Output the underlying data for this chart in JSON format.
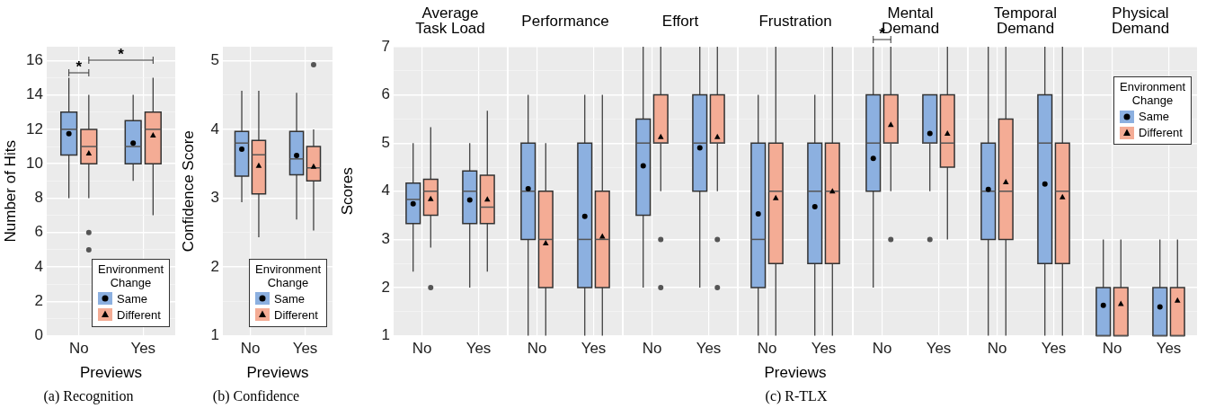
{
  "chart_data": [
    {
      "type": "box",
      "categories": [
        "No",
        "Yes"
      ],
      "xlabel": "Previews",
      "ylabel": "Number of Hits",
      "ylim": [
        0,
        16.8
      ],
      "yticks": [
        0,
        {
          "value": 1,
          "label": null
        },
        2,
        {
          "value": 3,
          "label": null
        },
        4,
        {
          "value": 5,
          "label": null
        },
        6,
        {
          "value": 7,
          "label": null
        },
        8,
        {
          "value": 9,
          "label": null
        },
        10,
        {
          "value": 11,
          "label": null
        },
        12,
        {
          "value": 13,
          "label": null
        },
        14,
        {
          "value": 15,
          "label": null
        },
        16
      ],
      "grid": true,
      "legend": "bottom right",
      "legend_title": "Environment Change",
      "series": [
        {
          "name": "Same",
          "color": "#8cb0e0",
          "marker": "circle",
          "boxes": [
            {
              "low": 8,
              "q1": 10.5,
              "median": 12,
              "q3": 13,
              "high": 15,
              "mean": 11.75
            },
            {
              "low": 9,
              "q1": 10,
              "median": 11,
              "q3": 12.5,
              "high": 14,
              "mean": 11.2
            }
          ]
        },
        {
          "name": "Different",
          "color": "#f4ac95",
          "marker": "triangle",
          "boxes": [
            {
              "low": 8,
              "q1": 10,
              "median": 11,
              "q3": 12,
              "high": 14,
              "mean": 10.6,
              "outliers": [
                6,
                5
              ]
            },
            {
              "low": 7,
              "q1": 10,
              "median": 12,
              "q3": 13,
              "high": 15,
              "mean": 11.65
            }
          ]
        }
      ],
      "annotations": [
        "(a) Recognition",
        "*",
        "*"
      ]
    },
    {
      "type": "box",
      "categories": [
        "No",
        "Yes"
      ],
      "xlabel": "Previews",
      "ylabel": "Confidence Score",
      "ylim": [
        1,
        5.2
      ],
      "yticks": [
        1,
        {
          "value": 1.5,
          "label": null
        },
        2,
        {
          "value": 2.5,
          "label": null
        },
        3,
        {
          "value": 3.5,
          "label": null
        },
        4,
        {
          "value": 4.5,
          "label": null
        },
        5
      ],
      "grid": true,
      "legend": "bottom right",
      "legend_title": "Environment Change",
      "series": [
        {
          "name": "Same",
          "color": "#8cb0e0",
          "marker": "circle",
          "boxes": [
            {
              "low": 2.94,
              "q1": 3.32,
              "median": 3.8,
              "q3": 3.97,
              "high": 4.56,
              "mean": 3.71
            },
            {
              "low": 2.69,
              "q1": 3.34,
              "median": 3.57,
              "q3": 3.97,
              "high": 4.53,
              "mean": 3.62
            }
          ]
        },
        {
          "name": "Different",
          "color": "#f4ac95",
          "marker": "triangle",
          "boxes": [
            {
              "low": 2.43,
              "q1": 3.06,
              "median": 3.63,
              "q3": 3.84,
              "high": 4.56,
              "mean": 3.47
            },
            {
              "low": 2.53,
              "q1": 3.25,
              "median": 3.44,
              "q3": 3.75,
              "high": 4.0,
              "mean": 3.46,
              "outliers": [
                4.94
              ]
            }
          ]
        }
      ],
      "annotations": [
        "(b) Confidence"
      ]
    },
    {
      "type": "box",
      "title": "Average Task Load",
      "categories": [
        "No",
        "Yes"
      ],
      "ylabel": "Scores",
      "ylim": [
        1,
        7
      ],
      "yticks": [
        1,
        {
          "value": 1.5,
          "label": null
        },
        2,
        {
          "value": 2.5,
          "label": null
        },
        3,
        {
          "value": 3.5,
          "label": null
        },
        4,
        {
          "value": 4.5,
          "label": null
        },
        5,
        {
          "value": 5.5,
          "label": null
        },
        6,
        {
          "value": 6.5,
          "label": null
        },
        7
      ],
      "grid": true,
      "series": [
        {
          "color": "#8cb0e0",
          "marker": "circle",
          "boxes": [
            {
              "low": 2.33,
              "q1": 3.33,
              "median": 3.83,
              "q3": 4.17,
              "high": 5,
              "mean": 3.74
            },
            {
              "low": 2,
              "q1": 3.33,
              "median": 4,
              "q3": 4.42,
              "high": 5,
              "mean": 3.82
            }
          ]
        },
        {
          "color": "#f4ac95",
          "marker": "triangle",
          "boxes": [
            {
              "low": 2.83,
              "q1": 3.5,
              "median": 4,
              "q3": 4.25,
              "high": 5.33,
              "mean": 3.84,
              "outliers": [
                2
              ]
            },
            {
              "low": 2.33,
              "q1": 3.33,
              "median": 3.67,
              "q3": 4.33,
              "high": 5.67,
              "mean": 3.83
            }
          ]
        }
      ]
    },
    {
      "type": "box",
      "title": "Performance",
      "categories": [
        "No",
        "Yes"
      ],
      "ylim": [
        1,
        7
      ],
      "yticks": [
        1,
        {
          "value": 1.5,
          "label": null
        },
        2,
        {
          "value": 2.5,
          "label": null
        },
        3,
        {
          "value": 3.5,
          "label": null
        },
        4,
        {
          "value": 4.5,
          "label": null
        },
        5,
        {
          "value": 5.5,
          "label": null
        },
        6,
        {
          "value": 6.5,
          "label": null
        },
        7
      ],
      "grid": true,
      "tick_labels": "x",
      "series": [
        {
          "color": "#8cb0e0",
          "marker": "circle",
          "boxes": [
            {
              "low": 1,
              "q1": 3,
              "median": 4,
              "q3": 5,
              "high": 6,
              "mean": 4.05
            },
            {
              "low": 1,
              "q1": 2,
              "median": 3,
              "q3": 5,
              "high": 6,
              "mean": 3.48
            }
          ]
        },
        {
          "color": "#f4ac95",
          "marker": "triangle",
          "boxes": [
            {
              "low": 1,
              "q1": 2,
              "median": 3,
              "q3": 4,
              "high": 5,
              "mean": 2.92
            },
            {
              "low": 1,
              "q1": 2,
              "median": 3,
              "q3": 4,
              "high": 6,
              "mean": 3.06
            }
          ]
        }
      ]
    },
    {
      "type": "box",
      "title": "Effort",
      "categories": [
        "No",
        "Yes"
      ],
      "ylim": [
        1,
        7
      ],
      "yticks": [
        1,
        {
          "value": 1.5,
          "label": null
        },
        2,
        {
          "value": 2.5,
          "label": null
        },
        3,
        {
          "value": 3.5,
          "label": null
        },
        4,
        {
          "value": 4.5,
          "label": null
        },
        5,
        {
          "value": 5.5,
          "label": null
        },
        6,
        {
          "value": 6.5,
          "label": null
        },
        7
      ],
      "grid": true,
      "tick_labels": "x",
      "series": [
        {
          "color": "#8cb0e0",
          "marker": "circle",
          "boxes": [
            {
              "low": 2,
              "q1": 3.5,
              "median": 5,
              "q3": 5.5,
              "high": 7,
              "mean": 4.53
            },
            {
              "low": 2,
              "q1": 4,
              "median": 5,
              "q3": 6,
              "high": 7,
              "mean": 4.9
            }
          ]
        },
        {
          "color": "#f4ac95",
          "marker": "triangle",
          "boxes": [
            {
              "low": 4,
              "q1": 5,
              "median": 5,
              "q3": 6,
              "high": 7,
              "mean": 5.13,
              "outliers": [
                3,
                2
              ]
            },
            {
              "low": 4,
              "q1": 5,
              "median": 5,
              "q3": 6,
              "high": 7,
              "mean": 5.13,
              "outliers": [
                3,
                2
              ]
            }
          ]
        }
      ]
    },
    {
      "type": "box",
      "title": "Frustration",
      "categories": [
        "No",
        "Yes"
      ],
      "xlabel": "Previews",
      "ylim": [
        1,
        7
      ],
      "yticks": [
        1,
        {
          "value": 1.5,
          "label": null
        },
        2,
        {
          "value": 2.5,
          "label": null
        },
        3,
        {
          "value": 3.5,
          "label": null
        },
        4,
        {
          "value": 4.5,
          "label": null
        },
        5,
        {
          "value": 5.5,
          "label": null
        },
        6,
        {
          "value": 6.5,
          "label": null
        },
        7
      ],
      "grid": true,
      "tick_labels": "x",
      "series": [
        {
          "color": "#8cb0e0",
          "marker": "circle",
          "boxes": [
            {
              "low": 1,
              "q1": 2,
              "median": 3,
              "q3": 5,
              "high": 6,
              "mean": 3.53
            },
            {
              "low": 1,
              "q1": 2.5,
              "median": 4,
              "q3": 5,
              "high": 6,
              "mean": 3.68
            }
          ]
        },
        {
          "color": "#f4ac95",
          "marker": "triangle",
          "boxes": [
            {
              "low": 1,
              "q1": 2.5,
              "median": 4,
              "q3": 5,
              "high": 7,
              "mean": 3.86
            },
            {
              "low": 1,
              "q1": 2.5,
              "median": 4,
              "q3": 5,
              "high": 7,
              "mean": 4.0
            }
          ]
        }
      ],
      "annotations": [
        "(c) R-TLX"
      ]
    },
    {
      "type": "box",
      "title": "Mental Demand",
      "categories": [
        "No",
        "Yes"
      ],
      "ylim": [
        1,
        7
      ],
      "yticks": [
        1,
        {
          "value": 1.5,
          "label": null
        },
        2,
        {
          "value": 2.5,
          "label": null
        },
        3,
        {
          "value": 3.5,
          "label": null
        },
        4,
        {
          "value": 4.5,
          "label": null
        },
        5,
        {
          "value": 5.5,
          "label": null
        },
        6,
        {
          "value": 6.5,
          "label": null
        },
        7
      ],
      "grid": true,
      "tick_labels": "x",
      "series": [
        {
          "color": "#8cb0e0",
          "marker": "circle",
          "boxes": [
            {
              "low": 2,
              "q1": 4,
              "median": 5,
              "q3": 6,
              "high": 7,
              "mean": 4.68
            },
            {
              "low": 4,
              "q1": 5,
              "median": 5,
              "q3": 6,
              "high": 6,
              "mean": 5.2,
              "outliers": [
                3
              ]
            }
          ]
        },
        {
          "color": "#f4ac95",
          "marker": "triangle",
          "boxes": [
            {
              "low": 4,
              "q1": 5,
              "median": 5,
              "q3": 6,
              "high": 7,
              "mean": 5.38,
              "outliers": [
                3
              ]
            },
            {
              "low": 3,
              "q1": 4.5,
              "median": 5,
              "q3": 6,
              "high": 7,
              "mean": 5.2
            }
          ]
        }
      ],
      "annotations": [
        "*"
      ]
    },
    {
      "type": "box",
      "title": "Temporal Demand",
      "categories": [
        "No",
        "Yes"
      ],
      "ylim": [
        1,
        7
      ],
      "yticks": [
        1,
        {
          "value": 1.5,
          "label": null
        },
        2,
        {
          "value": 2.5,
          "label": null
        },
        3,
        {
          "value": 3.5,
          "label": null
        },
        4,
        {
          "value": 4.5,
          "label": null
        },
        5,
        {
          "value": 5.5,
          "label": null
        },
        6,
        {
          "value": 6.5,
          "label": null
        },
        7
      ],
      "grid": true,
      "tick_labels": "x",
      "series": [
        {
          "color": "#8cb0e0",
          "marker": "circle",
          "boxes": [
            {
              "low": 1,
              "q1": 3,
              "median": 4,
              "q3": 5,
              "high": 7,
              "mean": 4.04
            },
            {
              "low": 1,
              "q1": 2.5,
              "median": 5,
              "q3": 6,
              "high": 7,
              "mean": 4.15
            }
          ]
        },
        {
          "color": "#f4ac95",
          "marker": "triangle",
          "boxes": [
            {
              "low": 1,
              "q1": 3,
              "median": 4,
              "q3": 5.5,
              "high": 7,
              "mean": 4.19
            },
            {
              "low": 1,
              "q1": 2.5,
              "median": 4,
              "q3": 5,
              "high": 7,
              "mean": 3.88
            }
          ]
        }
      ]
    },
    {
      "type": "box",
      "title": "Physical Demand",
      "categories": [
        "No",
        "Yes"
      ],
      "ylim": [
        1,
        7
      ],
      "yticks": [
        1,
        {
          "value": 1.5,
          "label": null
        },
        2,
        {
          "value": 2.5,
          "label": null
        },
        3,
        {
          "value": 3.5,
          "label": null
        },
        4,
        {
          "value": 4.5,
          "label": null
        },
        5,
        {
          "value": 5.5,
          "label": null
        },
        6,
        {
          "value": 6.5,
          "label": null
        },
        7
      ],
      "grid": true,
      "tick_labels": "x",
      "legend": "top right",
      "legend_title": "Environment Change",
      "series": [
        {
          "name": "Same",
          "color": "#8cb0e0",
          "marker": "circle",
          "boxes": [
            {
              "low": 1,
              "q1": 1,
              "median": 1,
              "q3": 2,
              "high": 3,
              "mean": 1.63
            },
            {
              "low": 1,
              "q1": 1,
              "median": 1,
              "q3": 2,
              "high": 3,
              "mean": 1.6
            }
          ]
        },
        {
          "name": "Different",
          "color": "#f4ac95",
          "marker": "triangle",
          "boxes": [
            {
              "low": 1,
              "q1": 1,
              "median": 1,
              "q3": 2,
              "high": 3,
              "mean": 1.66
            },
            {
              "low": 1,
              "q1": 1,
              "median": 1,
              "q3": 2,
              "high": 3,
              "mean": 1.73
            }
          ]
        }
      ]
    }
  ]
}
